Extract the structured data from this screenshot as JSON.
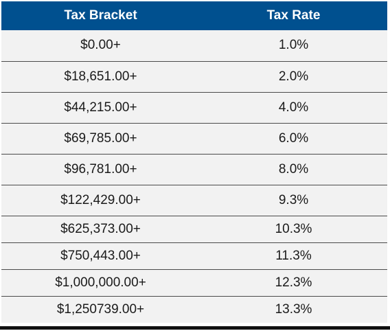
{
  "table": {
    "header": {
      "col1": "Tax Bracket",
      "col2": "Tax Rate"
    },
    "rows": [
      {
        "bracket": "$0.00+",
        "rate": "1.0%"
      },
      {
        "bracket": "$18,651.00+",
        "rate": "2.0%"
      },
      {
        "bracket": "$44,215.00+",
        "rate": "4.0%"
      },
      {
        "bracket": "$69,785.00+",
        "rate": "6.0%"
      },
      {
        "bracket": "$96,781.00+",
        "rate": "8.0%"
      },
      {
        "bracket": "$122,429.00+",
        "rate": "9.3%"
      },
      {
        "bracket": "$625,373.00+",
        "rate": "10.3%"
      },
      {
        "bracket": "$750,443.00+",
        "rate": "11.3%"
      },
      {
        "bracket": "$1,000,000.00+",
        "rate": "12.3%"
      },
      {
        "bracket": "$1,250739.00+",
        "rate": "13.3%"
      }
    ]
  },
  "colors": {
    "header_bg": "#00508f",
    "header_text": "#ffffff",
    "row_bg": "#f2f2f2",
    "row_divider": "#4a4a4a"
  }
}
